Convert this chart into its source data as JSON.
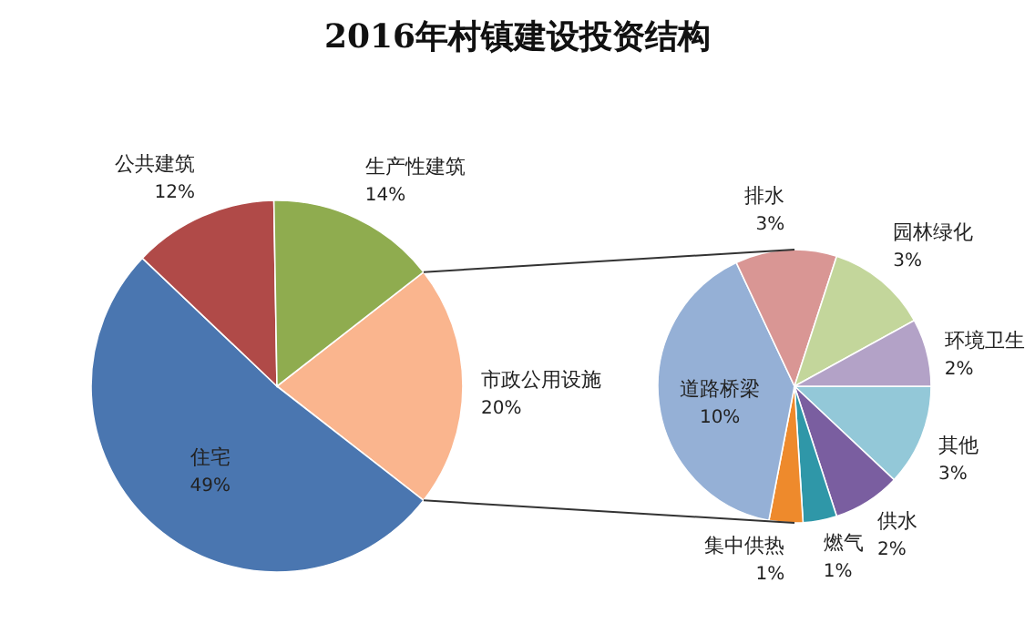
{
  "chart_data": [
    {
      "type": "pie",
      "title": "2016年村镇建设投资结构",
      "categories": [
        "市政公用设施",
        "住宅",
        "公共建筑",
        "生产性建筑"
      ],
      "values": [
        20,
        49,
        12,
        14
      ],
      "value_labels": [
        "20%",
        "49%",
        "12%",
        "14%"
      ],
      "colors": [
        "#fab58e",
        "#4a76b0",
        "#b04a48",
        "#8fac4f"
      ]
    },
    {
      "type": "pie",
      "categories": [
        "其他",
        "供水",
        "燃气",
        "集中供热",
        "道路桥梁",
        "排水",
        "园林绿化",
        "环境卫生"
      ],
      "values": [
        3,
        2,
        1,
        1,
        10,
        3,
        3,
        2
      ],
      "value_labels": [
        "3%",
        "2%",
        "1%",
        "1%",
        "10%",
        "3%",
        "3%",
        "2%"
      ],
      "colors": [
        "#93c8d8",
        "#7a5ea0",
        "#2f97a8",
        "#ee8a2c",
        "#95b0d6",
        "#d99694",
        "#c3d69b",
        "#b3a2c7"
      ]
    }
  ]
}
